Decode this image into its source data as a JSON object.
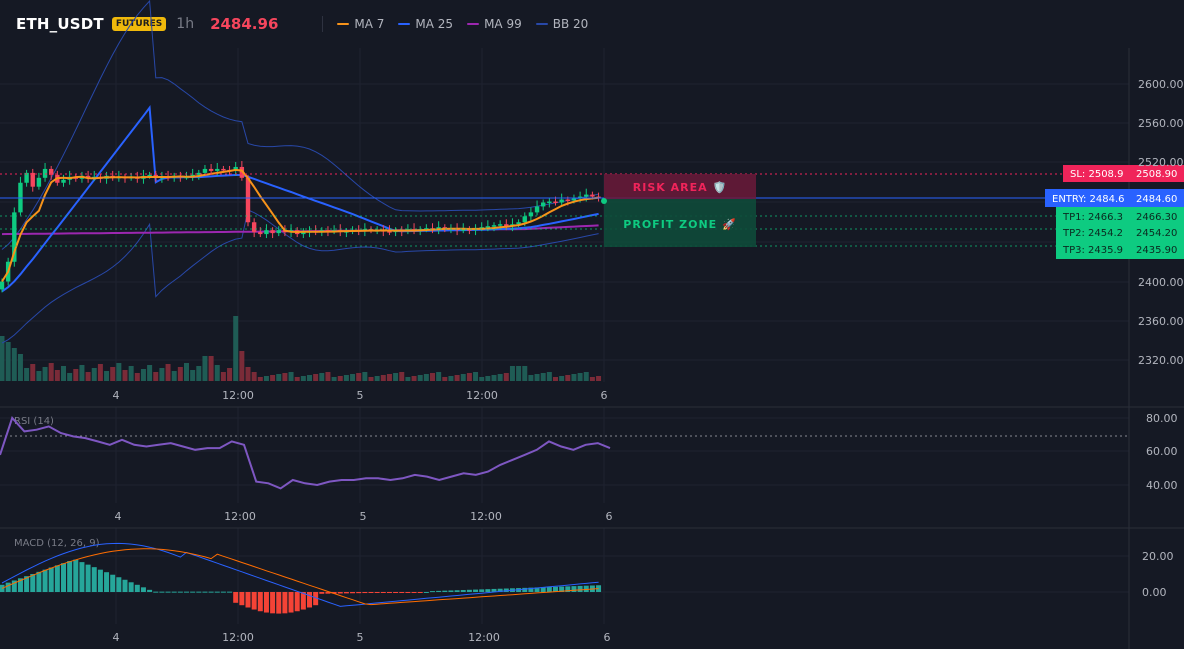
{
  "header": {
    "symbol": "ETH_USDT",
    "badge": "FUTURES",
    "interval": "1h",
    "price": "2484.96"
  },
  "legend": [
    {
      "label": "MA 7",
      "color": "#f7931a"
    },
    {
      "label": "MA 25",
      "color": "#2962ff"
    },
    {
      "label": "MA 99",
      "color": "#9c27b0"
    },
    {
      "label": "BB 20",
      "color": "#2848a8"
    }
  ],
  "colors": {
    "up": "#26a69a",
    "up_candle": "#0ecb81",
    "down": "#f6465d",
    "sl": "#f0245a",
    "entry": "#2962ff",
    "tp": "#0ecb81"
  },
  "price_axis": {
    "labels": [
      "2600.00",
      "2560.00",
      "2520.00",
      "2400.00",
      "2360.00",
      "2320.00"
    ]
  },
  "time_axis": {
    "labels": [
      "4",
      "12:00",
      "5",
      "12:00",
      "6"
    ]
  },
  "levels": {
    "sl": {
      "left": "SL: 2508.9",
      "right": "2508.90"
    },
    "entry": {
      "left": "ENTRY: 2484.6",
      "right": "2484.60"
    },
    "tp1": {
      "left": "TP1: 2466.3",
      "right": "2466.30"
    },
    "tp2": {
      "left": "TP2: 2454.2",
      "right": "2454.20"
    },
    "tp3": {
      "left": "TP3: 2435.9",
      "right": "2435.90"
    }
  },
  "zones": {
    "risk": "RISK AREA 🛡️",
    "profit": "PROFIT ZONE 🚀"
  },
  "rsi": {
    "title": "RSI (14)",
    "axis": [
      "80.00",
      "60.00",
      "40.00"
    ],
    "values": [
      58,
      80,
      72,
      73,
      75,
      71,
      69,
      68,
      66,
      64,
      67,
      64,
      63,
      64,
      65,
      63,
      61,
      62,
      62,
      66,
      64,
      42,
      41,
      38,
      43,
      41,
      40,
      42,
      43,
      43,
      44,
      44,
      43,
      44,
      46,
      45,
      43,
      45,
      47,
      46,
      48,
      52,
      55,
      58,
      61,
      66,
      63,
      61,
      64,
      65,
      62
    ]
  },
  "macd": {
    "title": "MACD (12, 26, 9)",
    "axis": [
      "20.00",
      "0.00"
    ]
  }
}
